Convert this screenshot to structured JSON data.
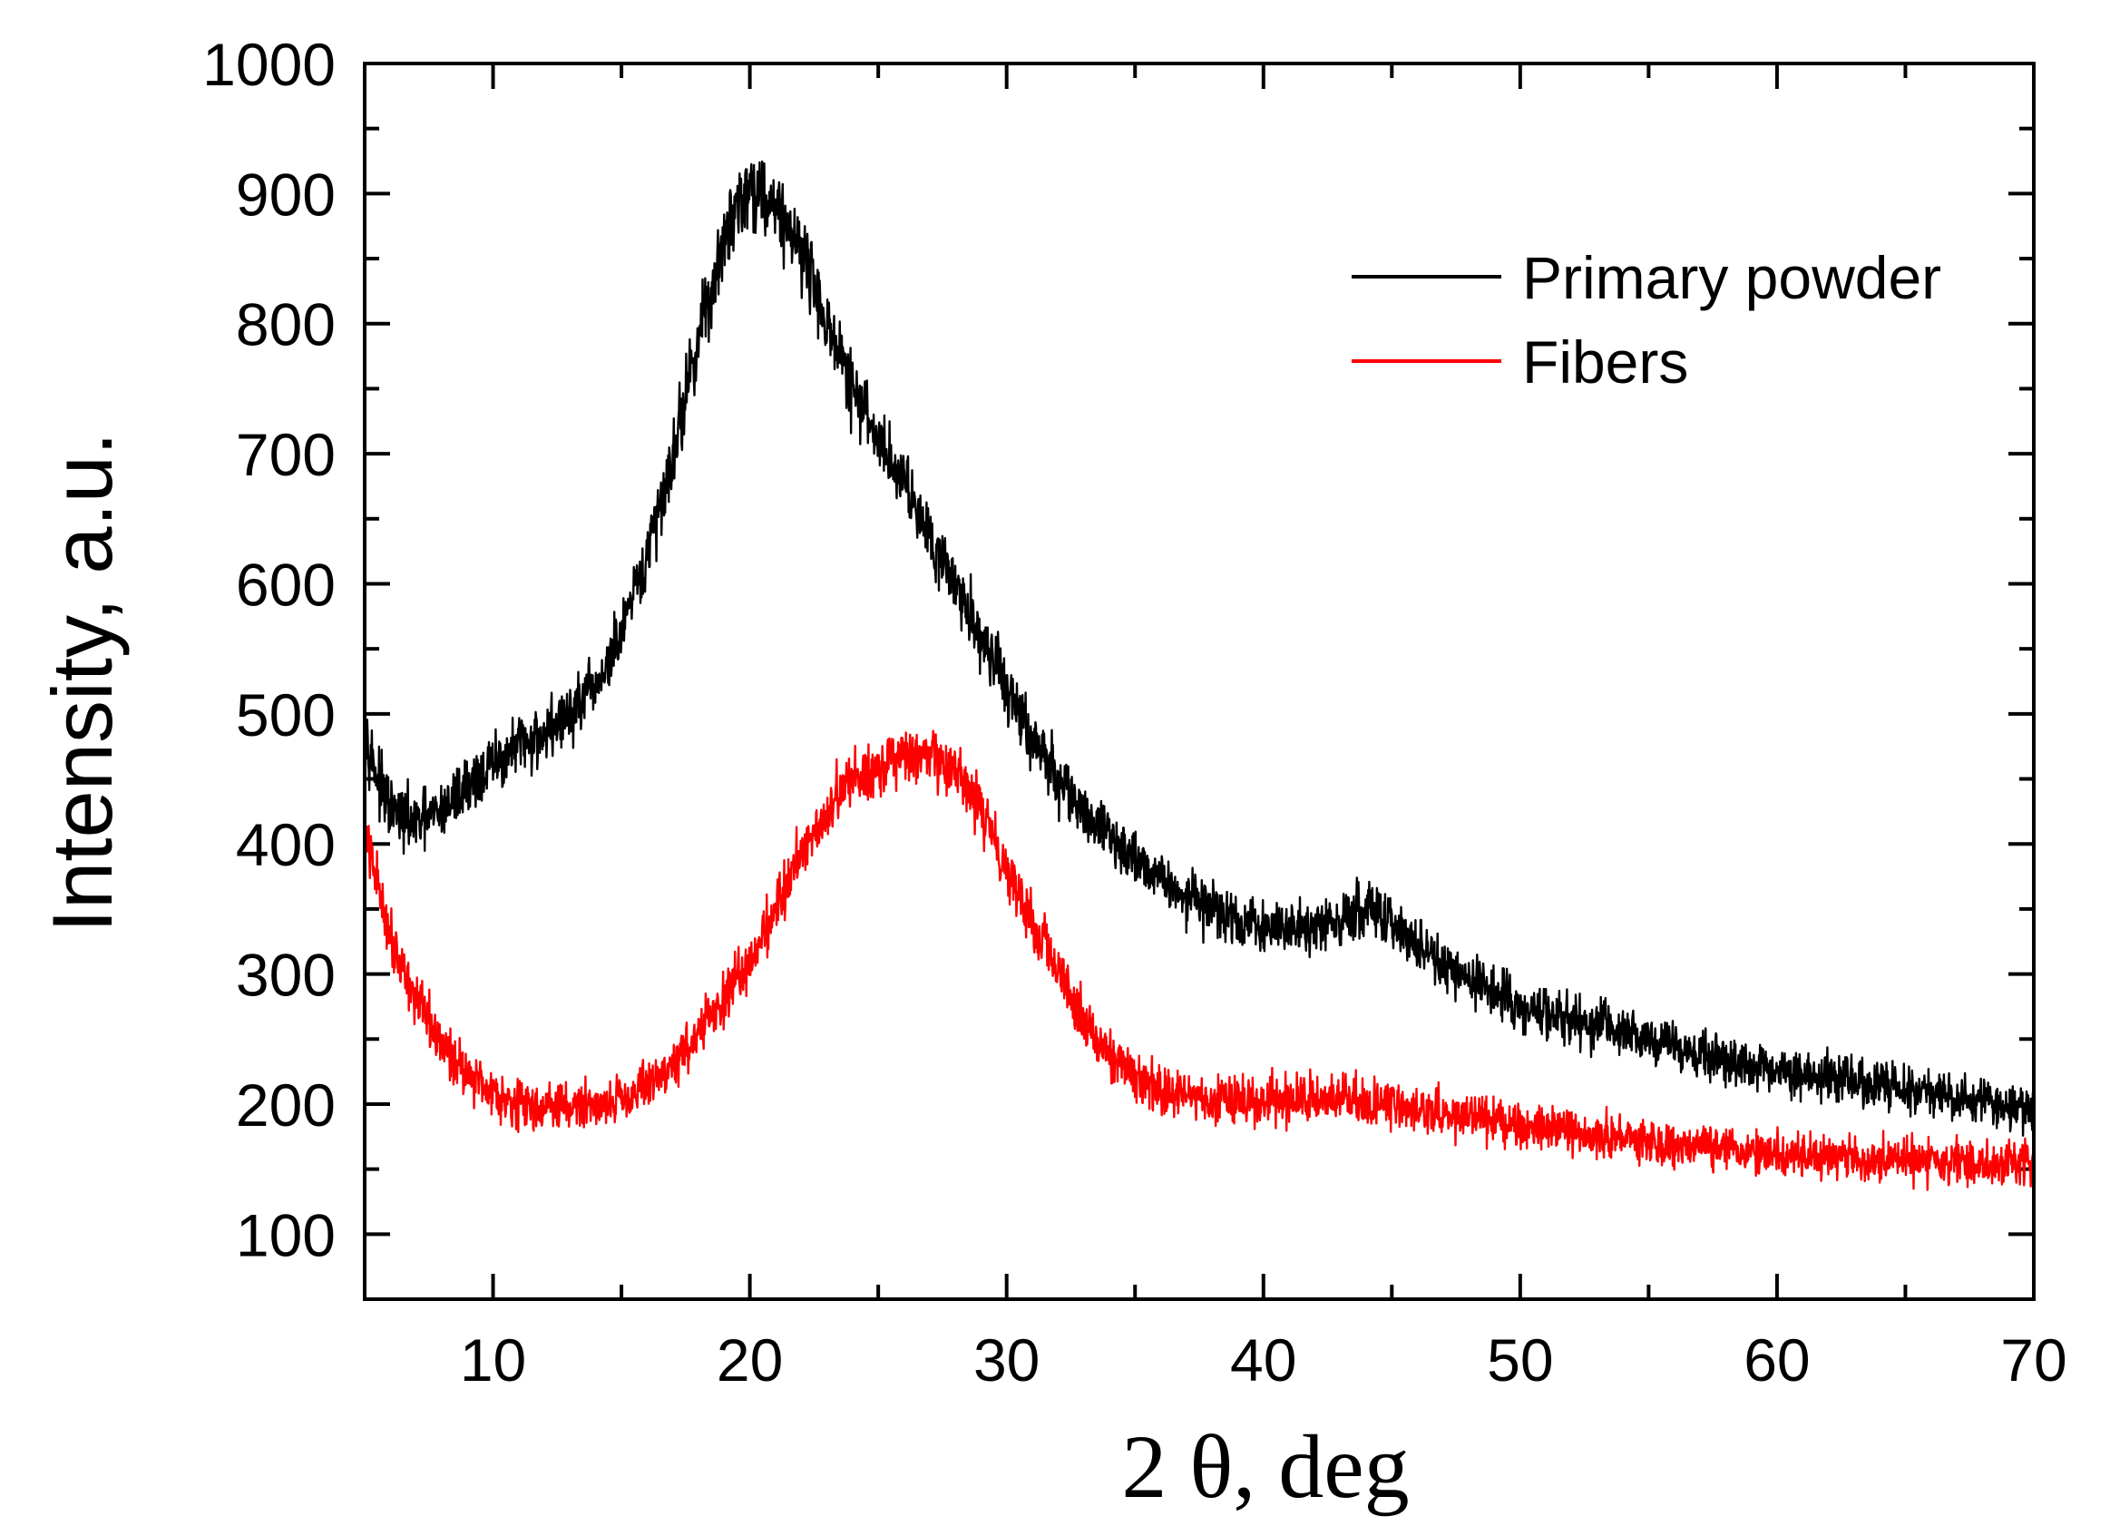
{
  "chart_data": {
    "type": "line",
    "title": "",
    "xlabel": "2 θ, deg",
    "ylabel": "Intensity, a.u.",
    "xlim": [
      5,
      70
    ],
    "ylim": [
      50,
      1000
    ],
    "x_ticks": [
      10,
      20,
      30,
      40,
      50,
      60,
      70
    ],
    "y_ticks": [
      100,
      200,
      300,
      400,
      500,
      600,
      700,
      800,
      900,
      1000
    ],
    "grid": false,
    "legend_position": "top-right",
    "series": [
      {
        "name": "Primary powder",
        "color": "#000000",
        "x": [
          5,
          5.5,
          6,
          7,
          8,
          9,
          10,
          11,
          12,
          13,
          14,
          15,
          16,
          17,
          18,
          19,
          19.5,
          20,
          20.5,
          21,
          22,
          23,
          24,
          25,
          26,
          27,
          28,
          29,
          30,
          31,
          32,
          33,
          34,
          35,
          36,
          37,
          38,
          39,
          40,
          41,
          42,
          43,
          44,
          45,
          46,
          47,
          48,
          49,
          50,
          52,
          54,
          56,
          58,
          60,
          62,
          64,
          66,
          68,
          70
        ],
        "y": [
          490,
          450,
          425,
          415,
          425,
          445,
          460,
          475,
          485,
          500,
          520,
          560,
          620,
          700,
          790,
          860,
          895,
          905,
          900,
          890,
          860,
          800,
          750,
          710,
          680,
          640,
          600,
          560,
          520,
          480,
          450,
          425,
          405,
          390,
          375,
          360,
          350,
          340,
          335,
          335,
          338,
          342,
          348,
          340,
          320,
          305,
          295,
          285,
          275,
          265,
          255,
          245,
          235,
          225,
          220,
          215,
          208,
          202,
          195
        ]
      },
      {
        "name": "Fibers",
        "color": "#ff0000",
        "x": [
          5,
          5.5,
          6,
          7,
          8,
          9,
          10,
          11,
          12,
          13,
          14,
          15,
          16,
          17,
          18,
          19,
          20,
          21,
          22,
          23,
          24,
          25,
          26,
          27,
          28,
          29,
          30,
          31,
          32,
          33,
          34,
          35,
          36,
          37,
          38,
          39,
          40,
          41,
          42,
          43,
          44,
          45,
          46,
          47,
          48,
          49,
          50,
          52,
          54,
          56,
          58,
          60,
          62,
          64,
          66,
          68,
          70
        ],
        "y": [
          405,
          370,
          330,
          280,
          245,
          225,
          210,
          200,
          198,
          198,
          200,
          205,
          215,
          230,
          255,
          280,
          310,
          350,
          395,
          425,
          450,
          460,
          465,
          465,
          455,
          425,
          385,
          340,
          300,
          265,
          240,
          220,
          210,
          206,
          205,
          203,
          202,
          203,
          205,
          205,
          203,
          200,
          196,
          192,
          188,
          185,
          182,
          178,
          173,
          168,
          165,
          162,
          160,
          158,
          156,
          155,
          155
        ]
      }
    ]
  }
}
